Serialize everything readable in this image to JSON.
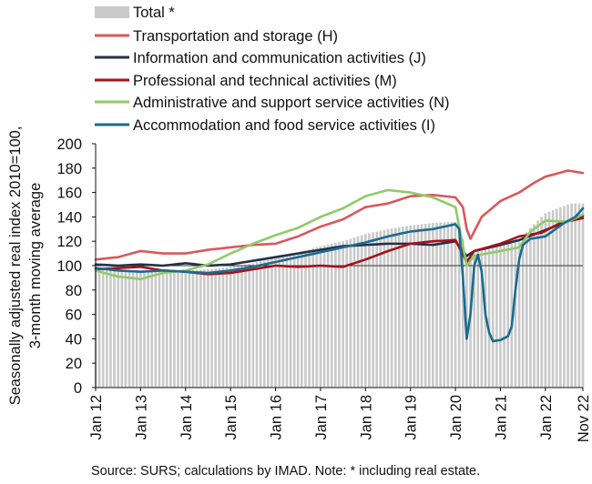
{
  "chart_data": {
    "type": "line",
    "title": "",
    "ylabel_line1": "Seasonally adjusted real index 2010=100,",
    "ylabel_line2": "3-month moving average",
    "xlabel": "",
    "ylim": [
      0,
      200
    ],
    "yticks": [
      0,
      20,
      40,
      60,
      80,
      100,
      120,
      140,
      160,
      180,
      200
    ],
    "x_ticks": [
      "Jan 12",
      "Jan 13",
      "Jan 14",
      "Jan 15",
      "Jan 16",
      "Jan 17",
      "Jan 18",
      "Jan 19",
      "Jan 20",
      "Jan 21",
      "Jan 22",
      "Nov 22"
    ],
    "x_range": [
      "2012-01",
      "2022-11"
    ],
    "reference_line": 100,
    "legend_position": "top-left",
    "source_note": "Source:  SURS; calculations by IMAD. Note: * including real estate.",
    "bars": {
      "name": "Total *",
      "color": "#c9c9c9",
      "points": [
        [
          "2012-01",
          99
        ],
        [
          "2012-07",
          97
        ],
        [
          "2013-01",
          96
        ],
        [
          "2013-07",
          95
        ],
        [
          "2014-01",
          96
        ],
        [
          "2014-07",
          97
        ],
        [
          "2015-01",
          99
        ],
        [
          "2015-07",
          102
        ],
        [
          "2016-01",
          108
        ],
        [
          "2016-07",
          111
        ],
        [
          "2017-01",
          116
        ],
        [
          "2017-07",
          120
        ],
        [
          "2018-01",
          126
        ],
        [
          "2018-07",
          130
        ],
        [
          "2019-01",
          133
        ],
        [
          "2019-07",
          135
        ],
        [
          "2020-01",
          136
        ],
        [
          "2020-03",
          122
        ],
        [
          "2020-04",
          108
        ],
        [
          "2020-06",
          110
        ],
        [
          "2020-09",
          115
        ],
        [
          "2021-01",
          116
        ],
        [
          "2021-06",
          120
        ],
        [
          "2021-09",
          131
        ],
        [
          "2022-01",
          143
        ],
        [
          "2022-05",
          148
        ],
        [
          "2022-08",
          151
        ],
        [
          "2022-11",
          151
        ]
      ]
    },
    "series": [
      {
        "name": "Transportation and storage (H)",
        "color": "#d9575c",
        "points": [
          [
            "2012-01",
            105
          ],
          [
            "2012-07",
            107
          ],
          [
            "2013-01",
            112
          ],
          [
            "2013-07",
            110
          ],
          [
            "2014-01",
            110
          ],
          [
            "2014-07",
            113
          ],
          [
            "2015-01",
            115
          ],
          [
            "2015-07",
            117
          ],
          [
            "2016-01",
            118
          ],
          [
            "2016-07",
            124
          ],
          [
            "2017-01",
            132
          ],
          [
            "2017-07",
            138
          ],
          [
            "2018-01",
            148
          ],
          [
            "2018-07",
            151
          ],
          [
            "2019-01",
            157
          ],
          [
            "2019-07",
            158
          ],
          [
            "2020-01",
            156
          ],
          [
            "2020-03",
            148
          ],
          [
            "2020-04",
            130
          ],
          [
            "2020-05",
            122
          ],
          [
            "2020-08",
            140
          ],
          [
            "2021-01",
            153
          ],
          [
            "2021-06",
            160
          ],
          [
            "2021-10",
            168
          ],
          [
            "2022-01",
            173
          ],
          [
            "2022-07",
            178
          ],
          [
            "2022-11",
            176
          ]
        ]
      },
      {
        "name": "Information and communication activities (J)",
        "color": "#243047",
        "points": [
          [
            "2012-01",
            101
          ],
          [
            "2012-07",
            100
          ],
          [
            "2013-01",
            101
          ],
          [
            "2013-07",
            100
          ],
          [
            "2014-01",
            102
          ],
          [
            "2014-07",
            100
          ],
          [
            "2015-01",
            101
          ],
          [
            "2015-07",
            104
          ],
          [
            "2016-01",
            107
          ],
          [
            "2016-07",
            110
          ],
          [
            "2017-01",
            113
          ],
          [
            "2017-07",
            116
          ],
          [
            "2018-01",
            117
          ],
          [
            "2018-07",
            118
          ],
          [
            "2019-01",
            118
          ],
          [
            "2019-07",
            117
          ],
          [
            "2020-01",
            120
          ],
          [
            "2020-04",
            108
          ],
          [
            "2020-06",
            112
          ],
          [
            "2021-01",
            117
          ],
          [
            "2021-06",
            121
          ],
          [
            "2021-12",
            128
          ],
          [
            "2022-05",
            134
          ],
          [
            "2022-11",
            141
          ]
        ]
      },
      {
        "name": "Professional and technical activities (M)",
        "color": "#a5121b",
        "points": [
          [
            "2012-01",
            97
          ],
          [
            "2012-07",
            98
          ],
          [
            "2013-01",
            99
          ],
          [
            "2013-07",
            96
          ],
          [
            "2014-01",
            95
          ],
          [
            "2014-07",
            93
          ],
          [
            "2015-01",
            94
          ],
          [
            "2015-07",
            97
          ],
          [
            "2016-01",
            100
          ],
          [
            "2016-07",
            99
          ],
          [
            "2017-01",
            100
          ],
          [
            "2017-07",
            99
          ],
          [
            "2018-01",
            105
          ],
          [
            "2018-07",
            112
          ],
          [
            "2019-01",
            118
          ],
          [
            "2019-07",
            120
          ],
          [
            "2020-01",
            121
          ],
          [
            "2020-04",
            103
          ],
          [
            "2020-06",
            112
          ],
          [
            "2021-01",
            118
          ],
          [
            "2021-06",
            124
          ],
          [
            "2021-12",
            127
          ],
          [
            "2022-05",
            135
          ],
          [
            "2022-11",
            139
          ]
        ]
      },
      {
        "name": "Administrative and support service activities (N)",
        "color": "#8fca6a",
        "points": [
          [
            "2012-01",
            96
          ],
          [
            "2012-07",
            91
          ],
          [
            "2013-01",
            89
          ],
          [
            "2013-07",
            94
          ],
          [
            "2014-01",
            96
          ],
          [
            "2014-07",
            101
          ],
          [
            "2015-01",
            110
          ],
          [
            "2015-07",
            118
          ],
          [
            "2016-01",
            125
          ],
          [
            "2016-07",
            131
          ],
          [
            "2017-01",
            140
          ],
          [
            "2017-07",
            147
          ],
          [
            "2018-01",
            157
          ],
          [
            "2018-07",
            162
          ],
          [
            "2019-01",
            160
          ],
          [
            "2019-07",
            156
          ],
          [
            "2020-01",
            148
          ],
          [
            "2020-04",
            100
          ],
          [
            "2020-06",
            108
          ],
          [
            "2021-01",
            112
          ],
          [
            "2021-06",
            115
          ],
          [
            "2021-09",
            128
          ],
          [
            "2022-01",
            137
          ],
          [
            "2022-07",
            136
          ],
          [
            "2022-11",
            142
          ]
        ]
      },
      {
        "name": "Accommodation and food service activities (I)",
        "color": "#1a6b8f",
        "points": [
          [
            "2012-01",
            98
          ],
          [
            "2012-07",
            96
          ],
          [
            "2013-01",
            95
          ],
          [
            "2013-07",
            96
          ],
          [
            "2014-01",
            95
          ],
          [
            "2014-07",
            94
          ],
          [
            "2015-01",
            96
          ],
          [
            "2015-07",
            99
          ],
          [
            "2016-01",
            103
          ],
          [
            "2016-07",
            107
          ],
          [
            "2017-01",
            111
          ],
          [
            "2017-07",
            115
          ],
          [
            "2018-01",
            119
          ],
          [
            "2018-07",
            124
          ],
          [
            "2019-01",
            128
          ],
          [
            "2019-07",
            130
          ],
          [
            "2020-01",
            134
          ],
          [
            "2020-02",
            130
          ],
          [
            "2020-03",
            90
          ],
          [
            "2020-04",
            40
          ],
          [
            "2020-05",
            60
          ],
          [
            "2020-06",
            100
          ],
          [
            "2020-07",
            109
          ],
          [
            "2020-08",
            95
          ],
          [
            "2020-09",
            60
          ],
          [
            "2020-10",
            45
          ],
          [
            "2020-11",
            38
          ],
          [
            "2021-01",
            39
          ],
          [
            "2021-03",
            42
          ],
          [
            "2021-04",
            50
          ],
          [
            "2021-05",
            80
          ],
          [
            "2021-06",
            105
          ],
          [
            "2021-07",
            117
          ],
          [
            "2021-09",
            122
          ],
          [
            "2022-01",
            124
          ],
          [
            "2022-06",
            135
          ],
          [
            "2022-09",
            140
          ],
          [
            "2022-11",
            147
          ]
        ]
      }
    ]
  }
}
